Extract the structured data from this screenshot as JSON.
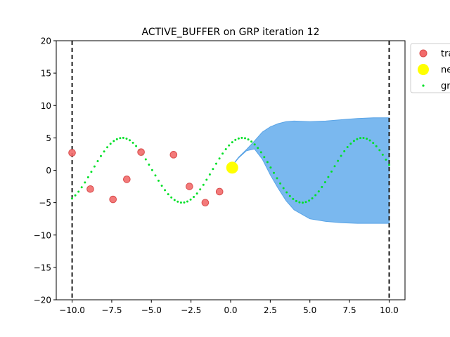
{
  "chart_data": {
    "type": "scatter",
    "title": "ACTIVE_BUFFER on GRP iteration 12",
    "xlabel": "",
    "ylabel": "",
    "xlim": [
      -11,
      11
    ],
    "ylim": [
      -20,
      20
    ],
    "xticks": [
      -10.0,
      -7.5,
      -5.0,
      -2.5,
      0.0,
      2.5,
      5.0,
      7.5,
      10.0
    ],
    "xtick_labels": [
      "−10.0",
      "−7.5",
      "−5.0",
      "−2.5",
      "0.0",
      "2.5",
      "5.0",
      "7.5",
      "10.0"
    ],
    "yticks": [
      -20,
      -15,
      -10,
      -5,
      0,
      5,
      10,
      15,
      20
    ],
    "ytick_labels": [
      "−20",
      "−15",
      "−10",
      "−5",
      "0",
      "5",
      "10",
      "15",
      "20"
    ],
    "grid": false,
    "legend": {
      "placement": "outside-top-right",
      "entries": [
        {
          "label": "tra",
          "marker": "circle",
          "color": "#f26b6b"
        },
        {
          "label": "ne",
          "marker": "circle",
          "color": "#ffff00"
        },
        {
          "label": "gr",
          "marker": "dots",
          "color": "#00e028"
        }
      ]
    },
    "vlines": [
      -10,
      10
    ],
    "series": [
      {
        "name": "tra",
        "kind": "scatter",
        "color": "#f26b6b",
        "x": [
          -10.0,
          -8.85,
          -7.42,
          -6.55,
          -5.65,
          -3.6,
          -2.6,
          -1.6,
          -0.7
        ],
        "y": [
          2.7,
          -2.9,
          -4.5,
          -1.4,
          2.8,
          2.4,
          -2.5,
          -5.0,
          -3.3
        ]
      },
      {
        "name": "ne",
        "kind": "scatter",
        "color": "#ffff00",
        "x": [
          0.1
        ],
        "y": [
          0.4
        ]
      },
      {
        "name": "gr",
        "kind": "dotted-line",
        "color": "#00e028",
        "function": "5*sin(0.83*x + 0.96)",
        "x_range": [
          -10,
          10
        ],
        "points": 100
      }
    ],
    "band": {
      "color": "#7ab8ef",
      "stroke": "#5aa4e6",
      "x": [
        0.0,
        0.5,
        1.0,
        1.5,
        2.0,
        2.5,
        3.0,
        3.5,
        4.0,
        5.0,
        6.0,
        7.0,
        8.0,
        9.0,
        10.0
      ],
      "upper": [
        0.4,
        2.0,
        3.2,
        4.5,
        5.9,
        6.7,
        7.2,
        7.5,
        7.6,
        7.5,
        7.6,
        7.8,
        8.0,
        8.1,
        8.1
      ],
      "lower": [
        0.4,
        1.9,
        3.0,
        3.3,
        1.7,
        -0.7,
        -2.8,
        -4.7,
        -6.1,
        -7.5,
        -7.9,
        -8.1,
        -8.2,
        -8.2,
        -8.2
      ]
    }
  }
}
